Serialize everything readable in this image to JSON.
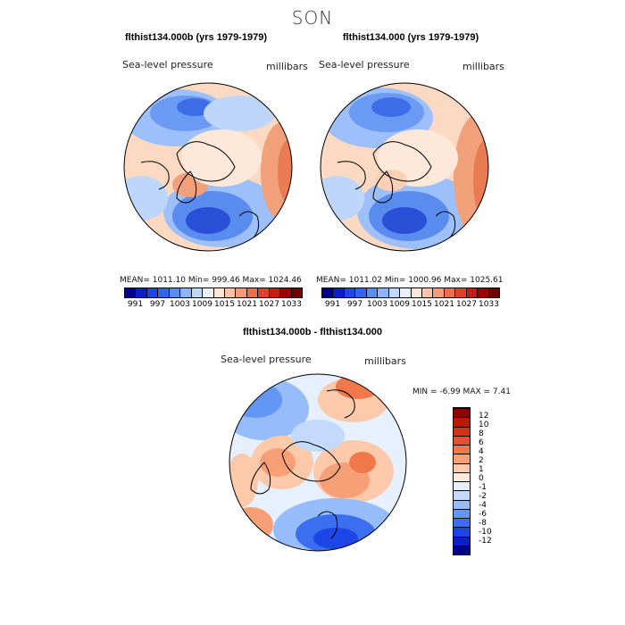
{
  "season": "SON",
  "panels": [
    {
      "title": "flthist134.000b (yrs 1979-1979)",
      "field": "Sea-level pressure",
      "units": "millibars",
      "stats": "MEAN= 1011.10   Min= 999.46   Max= 1024.46"
    },
    {
      "title": "flthist134.000 (yrs 1979-1979)",
      "field": "Sea-level pressure",
      "units": "millibars",
      "stats": "MEAN= 1011.02   Min= 1000.96   Max= 1025.61"
    },
    {
      "title": "flthist134.000b - flthist134.000",
      "field": "Sea-level pressure",
      "units": "millibars",
      "stats": "MIN =   -6.99 MAX =    7.41"
    }
  ],
  "abs_colorbar": {
    "ticks": [
      "991",
      "997",
      "1003",
      "1009",
      "1015",
      "1021",
      "1027",
      "1033"
    ],
    "colors": [
      "#00008b",
      "#0a1fc8",
      "#1e46e6",
      "#3366f0",
      "#5a8cf5",
      "#8cb4fa",
      "#bed7fc",
      "#e6f0ff",
      "#ffe6d7",
      "#fcc3a5",
      "#f59b78",
      "#eb6e4b",
      "#dc412d",
      "#c31e14",
      "#9b0000",
      "#6e0000"
    ]
  },
  "diff_colorbar": {
    "ticks": [
      "-12",
      "-10",
      "-8",
      "-6",
      "-4",
      "-2",
      "-1",
      "0",
      "1",
      "2",
      "4",
      "6",
      "8",
      "10",
      "12"
    ],
    "colors": [
      "#00008b",
      "#0a1fc8",
      "#1e46e6",
      "#3c6ef0",
      "#6496f5",
      "#96bcfa",
      "#c3dafc",
      "#e6f0ff",
      "#ffeade",
      "#fcc9aa",
      "#f7a078",
      "#f0784b",
      "#e6502d",
      "#d23214",
      "#b41e00",
      "#8b0000"
    ]
  }
}
